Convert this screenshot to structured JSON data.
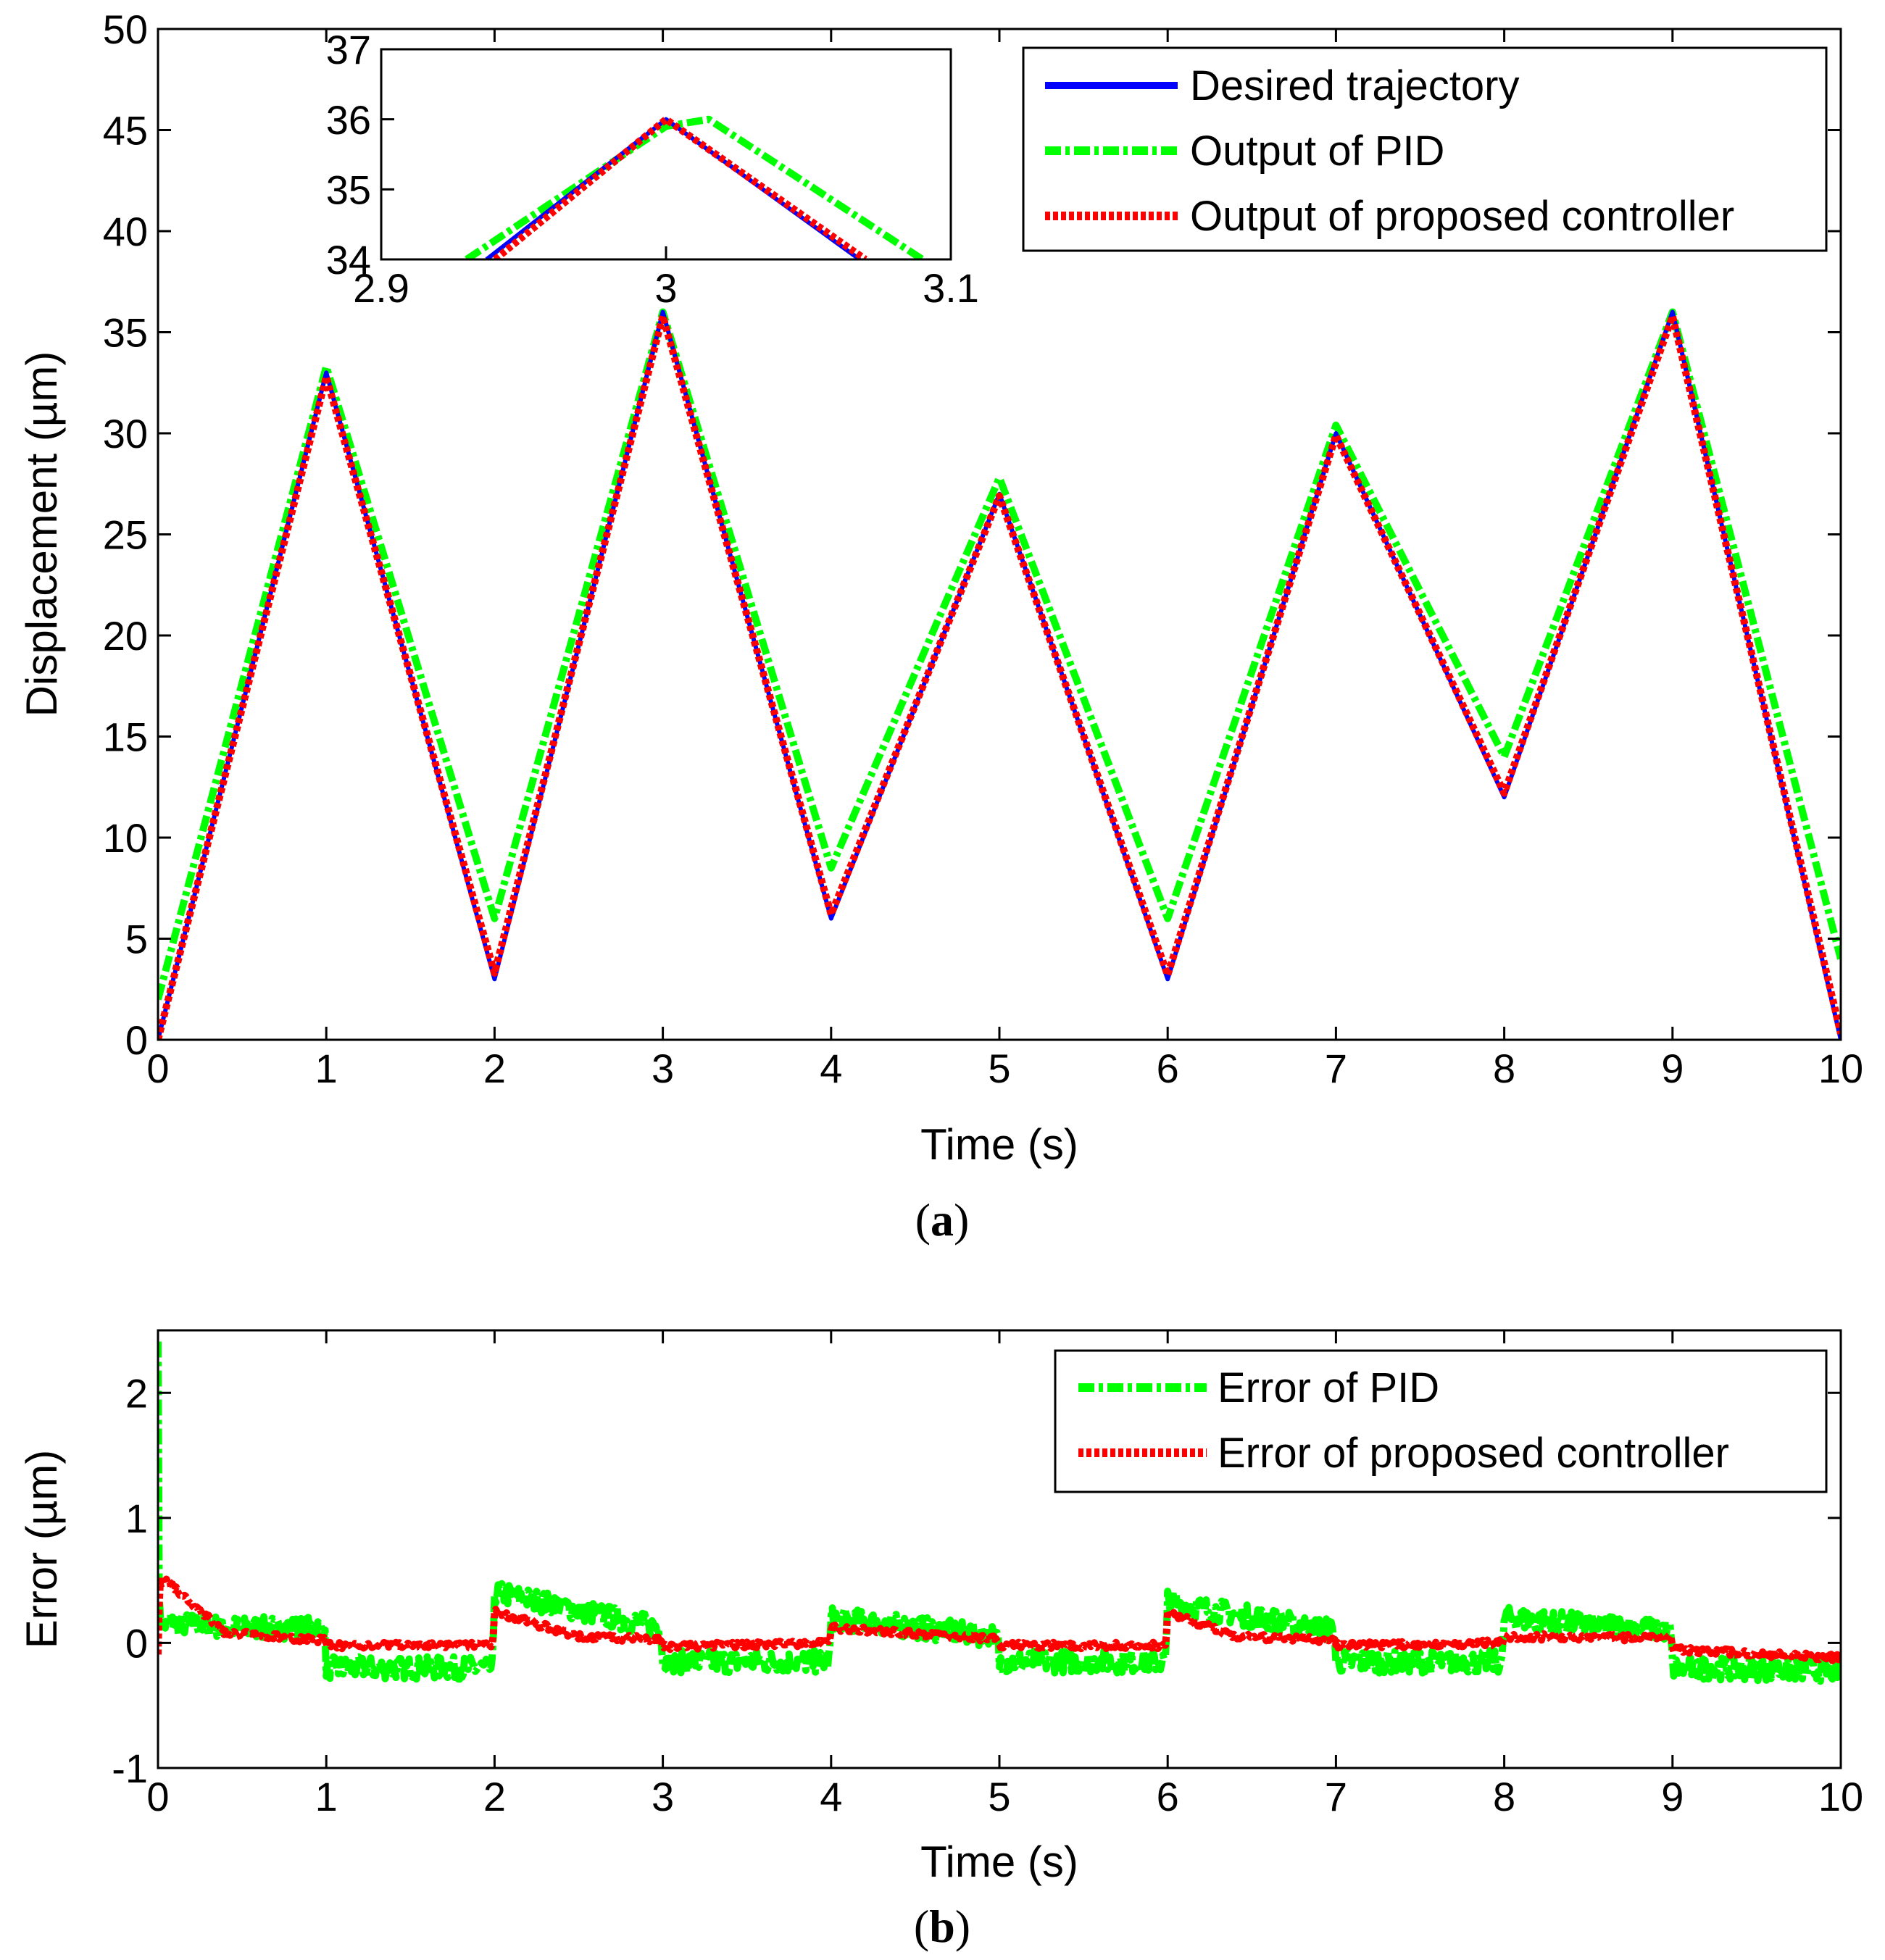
{
  "chart_data": [
    {
      "id": "a",
      "type": "line",
      "panel_label": "a",
      "xlabel": "Time (s)",
      "ylabel": "Displacement (µm)",
      "xlim": [
        0,
        10
      ],
      "ylim": [
        0,
        50
      ],
      "xticks": [
        "0",
        "1",
        "2",
        "3",
        "4",
        "5",
        "6",
        "7",
        "8",
        "9",
        "10"
      ],
      "yticks": [
        "0",
        "5",
        "10",
        "15",
        "20",
        "25",
        "30",
        "35",
        "40",
        "45",
        "50"
      ],
      "grid": false,
      "legend_position": "top-right",
      "series": [
        {
          "name": "Desired trajectory",
          "color": "#0000ff",
          "style": "solid",
          "x": [
            0,
            1,
            2,
            3,
            4,
            5,
            6,
            7,
            8,
            9,
            10
          ],
          "y": [
            0,
            33,
            3,
            36,
            6,
            27,
            3,
            30,
            12,
            36,
            0
          ]
        },
        {
          "name": "Output of PID",
          "color": "#00ff00",
          "style": "dash-dot",
          "x": [
            0,
            1,
            2,
            3,
            4,
            5,
            6,
            7,
            8,
            9,
            10
          ],
          "y": [
            2,
            33.3,
            6,
            36,
            8.5,
            27.8,
            6,
            30.4,
            14,
            36,
            4
          ]
        },
        {
          "name": "Output of proposed controller",
          "color": "#ff0000",
          "style": "dotted",
          "x": [
            0,
            1,
            2,
            3,
            4,
            5,
            6,
            7,
            8,
            9,
            10
          ],
          "y": [
            0,
            32.8,
            3.3,
            35.8,
            6.2,
            26.9,
            3.2,
            29.9,
            12.2,
            35.8,
            0.3
          ]
        }
      ],
      "inset": {
        "xlim": [
          2.9,
          3.1
        ],
        "ylim": [
          34,
          37
        ],
        "xticks": [
          "2.9",
          "3",
          "3.1"
        ],
        "yticks": [
          "34",
          "35",
          "36",
          "37"
        ],
        "series": [
          {
            "name": "Desired trajectory",
            "x": [
              2.937,
              3,
              3.068
            ],
            "y": [
              34,
              36,
              34
            ]
          },
          {
            "name": "Output of PID",
            "x": [
              2.93,
              3,
              3.015,
              3.09
            ],
            "y": [
              34,
              35.9,
              36,
              34
            ]
          },
          {
            "name": "Output of proposed controller",
            "x": [
              2.94,
              3,
              3.07
            ],
            "y": [
              34,
              36,
              34
            ]
          }
        ]
      }
    },
    {
      "id": "b",
      "type": "line",
      "panel_label": "b",
      "xlabel": "Time (s)",
      "ylabel": "Error (µm)",
      "xlim": [
        0,
        10
      ],
      "ylim": [
        -1,
        2.5
      ],
      "xticks": [
        "0",
        "1",
        "2",
        "3",
        "4",
        "5",
        "6",
        "7",
        "8",
        "9",
        "10"
      ],
      "yticks": [
        "-1",
        "0",
        "1",
        "2"
      ],
      "grid": false,
      "legend_position": "top-right",
      "series": [
        {
          "name": "Error of PID",
          "color": "#00ff00",
          "style": "dash-dot",
          "noise": 0.09,
          "x": [
            0,
            0.005,
            0.03,
            0.15,
            0.5,
            0.99,
            1.0,
            1.99,
            2.0,
            2.1,
            2.99,
            3.0,
            3.99,
            4.0,
            4.99,
            5.0,
            5.99,
            6.0,
            6.1,
            6.99,
            7.0,
            7.99,
            8.0,
            8.99,
            9.0,
            10.0
          ],
          "y": [
            2.5,
            0.3,
            0.15,
            0.15,
            0.12,
            0.12,
            -0.2,
            -0.2,
            0.4,
            0.38,
            0.12,
            -0.15,
            -0.15,
            0.2,
            0.05,
            -0.15,
            -0.15,
            0.35,
            0.3,
            0.1,
            -0.15,
            -0.15,
            0.2,
            0.1,
            -0.2,
            -0.22
          ]
        },
        {
          "name": "Error of proposed controller",
          "color": "#ff0000",
          "style": "dotted",
          "noise": 0.025,
          "x": [
            0,
            0.01,
            0.05,
            0.4,
            0.99,
            1.0,
            1.99,
            2.0,
            2.5,
            2.99,
            3.0,
            3.99,
            4.0,
            4.99,
            5.0,
            5.99,
            6.0,
            6.4,
            6.99,
            7.0,
            7.99,
            8.0,
            8.99,
            9.0,
            10.0
          ],
          "y": [
            -0.1,
            0.5,
            0.5,
            0.08,
            0.02,
            -0.02,
            -0.02,
            0.25,
            0.05,
            0.03,
            -0.03,
            0.0,
            0.12,
            0.03,
            -0.02,
            -0.02,
            0.25,
            0.05,
            0.02,
            -0.02,
            0.0,
            0.05,
            0.04,
            -0.05,
            -0.12
          ]
        }
      ]
    }
  ]
}
